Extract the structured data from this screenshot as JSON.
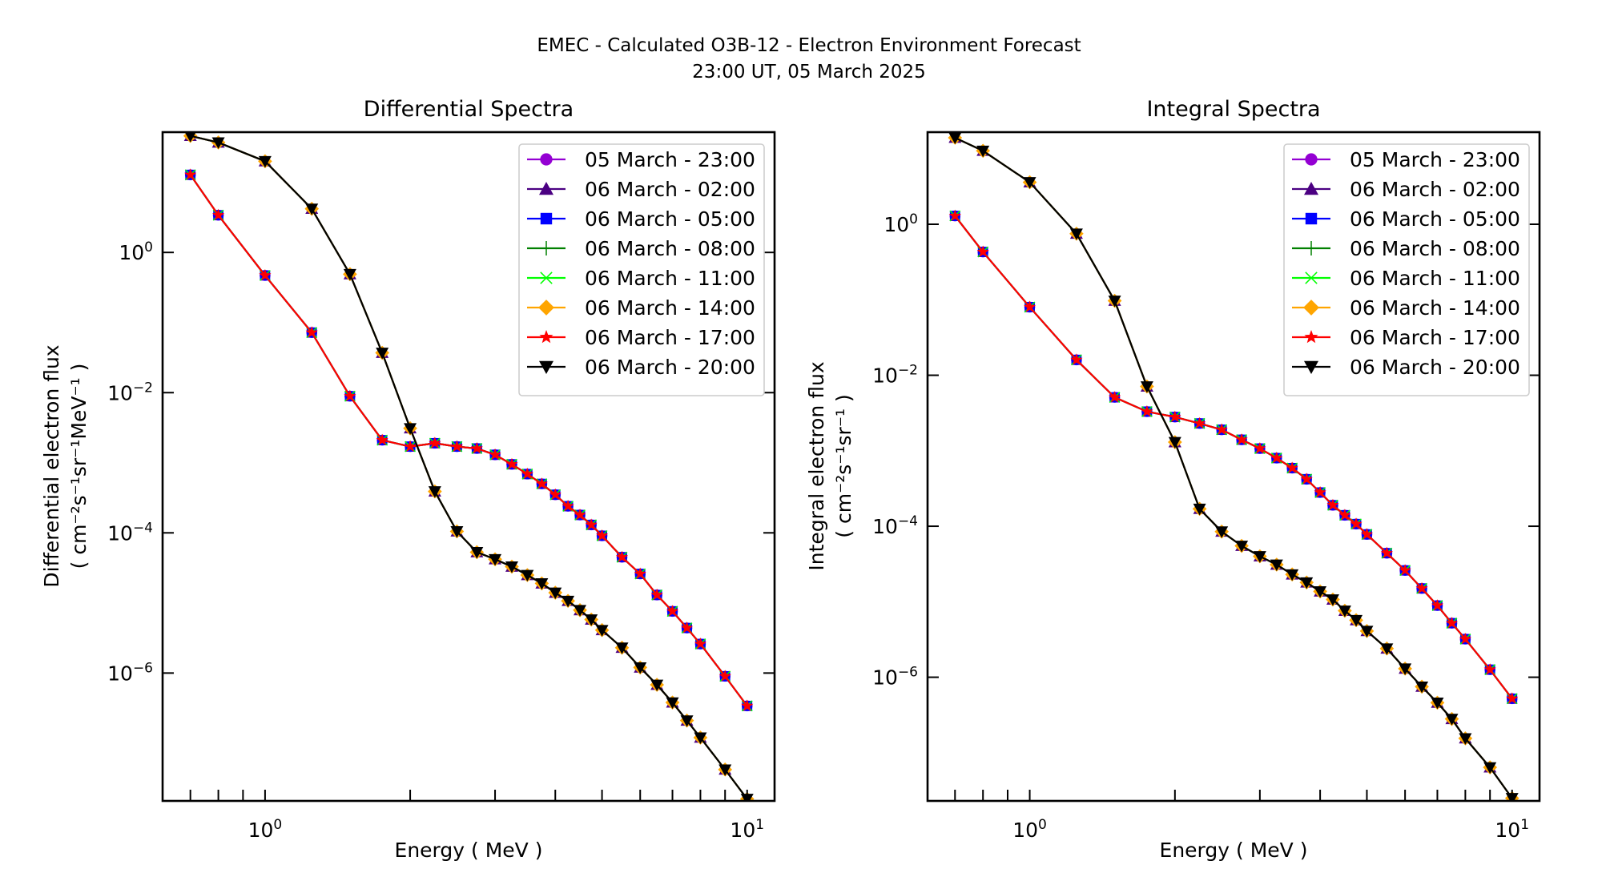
{
  "figure": {
    "title_line1": "EMEC - Calculated O3B-12 - Electron Environment Forecast",
    "title_line2": "23:00 UT, 05 March 2025"
  },
  "chart_data": [
    {
      "type": "line",
      "title": "Differential Spectra",
      "xlabel": "Energy ( MeV )",
      "ylabel_line1": "Differential electron flux",
      "ylabel_line2": "( cm⁻²s⁻¹sr⁻¹MeV⁻¹ )",
      "xscale": "log",
      "yscale": "log",
      "xlim": [
        0.613,
        11.4
      ],
      "ylim": [
        1.5e-08,
        52
      ],
      "xticks": [
        {
          "value": 1,
          "label": "10",
          "exp": "0"
        },
        {
          "value": 10,
          "label": "10",
          "exp": "1"
        }
      ],
      "yticks": [
        {
          "value": 1,
          "label": "10",
          "exp": "0"
        },
        {
          "value": 0.01,
          "label": "10",
          "exp": "−2"
        },
        {
          "value": 0.0001,
          "label": "10",
          "exp": "−4"
        },
        {
          "value": 1e-06,
          "label": "10",
          "exp": "−6"
        }
      ],
      "grid": false,
      "legend_position": "top-right",
      "x": [
        0.7,
        0.8,
        1.0,
        1.25,
        1.5,
        1.75,
        2.0,
        2.25,
        2.5,
        2.75,
        3.0,
        3.25,
        3.5,
        3.75,
        4.0,
        4.25,
        4.5,
        4.75,
        5.0,
        5.5,
        6.0,
        6.5,
        7.0,
        7.5,
        8.0,
        9.0,
        10.0
      ],
      "profiles": {
        "hard": [
          12.8,
          3.4,
          0.47,
          0.072,
          0.0089,
          0.0021,
          0.0017,
          0.0019,
          0.0017,
          0.0016,
          0.0013,
          0.00095,
          0.00069,
          0.0005,
          0.00035,
          0.00024,
          0.00018,
          0.00013,
          9.1e-05,
          4.5e-05,
          2.6e-05,
          1.3e-05,
          7.6e-06,
          4.4e-06,
          2.6e-06,
          9e-07,
          3.4e-07
        ],
        "soft": [
          46,
          37,
          20,
          4.2,
          0.49,
          0.037,
          0.0031,
          0.00039,
          0.000105,
          5.3e-05,
          4.2e-05,
          3.3e-05,
          2.5e-05,
          1.9e-05,
          1.4e-05,
          1.07e-05,
          7.9e-06,
          5.8e-06,
          4.1e-06,
          2.3e-06,
          1.2e-06,
          6.8e-07,
          3.8e-07,
          2.1e-07,
          1.2e-07,
          4.2e-08,
          1.6e-08
        ]
      },
      "series": [
        {
          "name": "05 March - 23:00",
          "color": "#9400d3",
          "marker": "circle",
          "profile": "hard"
        },
        {
          "name": "06 March - 02:00",
          "color": "#4b0082",
          "marker": "triangle-up",
          "profile": "soft"
        },
        {
          "name": "06 March - 05:00",
          "color": "#0000ff",
          "marker": "square",
          "profile": "hard"
        },
        {
          "name": "06 March - 08:00",
          "color": "#008000",
          "marker": "plus",
          "profile": "soft"
        },
        {
          "name": "06 March - 11:00",
          "color": "#00ff00",
          "marker": "x",
          "profile": "hard"
        },
        {
          "name": "06 March - 14:00",
          "color": "#ffa500",
          "marker": "diamond",
          "profile": "soft"
        },
        {
          "name": "06 March - 17:00",
          "color": "#ff0000",
          "marker": "star",
          "profile": "hard"
        },
        {
          "name": "06 March - 20:00",
          "color": "#000000",
          "marker": "triangle-down",
          "profile": "soft"
        }
      ]
    },
    {
      "type": "line",
      "title": "Integral Spectra",
      "xlabel": "Energy ( MeV )",
      "ylabel_line1": "Integral electron flux",
      "ylabel_line2": "( cm⁻²s⁻¹sr⁻¹ )",
      "xscale": "log",
      "yscale": "log",
      "xlim": [
        0.614,
        11.4
      ],
      "ylim": [
        2.3e-08,
        16.6
      ],
      "xticks": [
        {
          "value": 1,
          "label": "10",
          "exp": "0"
        },
        {
          "value": 10,
          "label": "10",
          "exp": "1"
        }
      ],
      "yticks": [
        {
          "value": 1,
          "label": "10",
          "exp": "0"
        },
        {
          "value": 0.01,
          "label": "10",
          "exp": "−2"
        },
        {
          "value": 0.0001,
          "label": "10",
          "exp": "−4"
        },
        {
          "value": 1e-06,
          "label": "10",
          "exp": "−6"
        }
      ],
      "grid": false,
      "legend_position": "top-right",
      "x": [
        0.7,
        0.8,
        1.0,
        1.25,
        1.5,
        1.75,
        2.0,
        2.25,
        2.5,
        2.75,
        3.0,
        3.25,
        3.5,
        3.75,
        4.0,
        4.25,
        4.5,
        4.75,
        5.0,
        5.5,
        6.0,
        6.5,
        7.0,
        7.5,
        8.0,
        9.0,
        10.0
      ],
      "profiles": {
        "hard": [
          1.29,
          0.43,
          0.08,
          0.016,
          0.0051,
          0.0033,
          0.0028,
          0.0023,
          0.0019,
          0.0014,
          0.00107,
          0.0008,
          0.00059,
          0.00042,
          0.00028,
          0.00019,
          0.00014,
          0.000107,
          7.8e-05,
          4.4e-05,
          2.6e-05,
          1.5e-05,
          8.9e-06,
          5.2e-06,
          3.2e-06,
          1.26e-06,
          5.2e-07
        ],
        "soft": [
          14,
          9.4,
          3.6,
          0.75,
          0.097,
          0.0071,
          0.0013,
          0.00017,
          8.5e-05,
          5.5e-05,
          4e-05,
          3.1e-05,
          2.3e-05,
          1.8e-05,
          1.37e-05,
          1.07e-05,
          7.6e-06,
          5.7e-06,
          4.1e-06,
          2.4e-06,
          1.3e-06,
          7.5e-07,
          4.6e-07,
          2.8e-07,
          1.55e-07,
          6.4e-08,
          2.5e-08
        ]
      },
      "series": [
        {
          "name": "05 March - 23:00",
          "color": "#9400d3",
          "marker": "circle",
          "profile": "hard"
        },
        {
          "name": "06 March - 02:00",
          "color": "#4b0082",
          "marker": "triangle-up",
          "profile": "soft"
        },
        {
          "name": "06 March - 05:00",
          "color": "#0000ff",
          "marker": "square",
          "profile": "hard"
        },
        {
          "name": "06 March - 08:00",
          "color": "#008000",
          "marker": "plus",
          "profile": "soft"
        },
        {
          "name": "06 March - 11:00",
          "color": "#00ff00",
          "marker": "x",
          "profile": "hard"
        },
        {
          "name": "06 March - 14:00",
          "color": "#ffa500",
          "marker": "diamond",
          "profile": "soft"
        },
        {
          "name": "06 March - 17:00",
          "color": "#ff0000",
          "marker": "star",
          "profile": "hard"
        },
        {
          "name": "06 March - 20:00",
          "color": "#000000",
          "marker": "triangle-down",
          "profile": "soft"
        }
      ]
    }
  ]
}
